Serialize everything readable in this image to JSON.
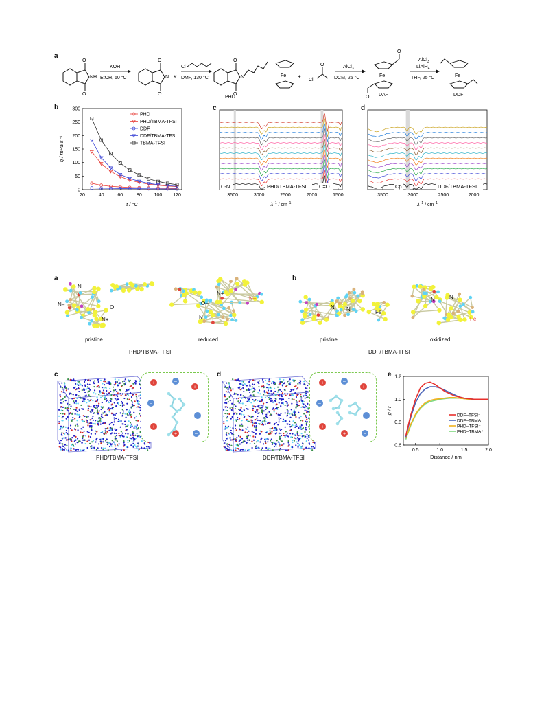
{
  "fig1": {
    "panel_a": {
      "label": "a",
      "reaction1": {
        "reagent_NH": "NH",
        "step1_top": "KOH",
        "step1_bottom": "EtOH, 60 °C",
        "cation": "K",
        "anion_N": "N",
        "reagent_Cl": "Cl",
        "step2_bottom": "DMF, 130 °C",
        "product_N": "N",
        "product": "PHD",
        "O": "O"
      },
      "reaction2": {
        "Fe": "Fe",
        "plus": "+",
        "Cl": "Cl",
        "step1_top": "AlCl",
        "step1_top_sub": "3",
        "step1_bottom": "DCM, 25 °C",
        "intermediate": "DAF",
        "step2_top1": "AlCl",
        "step2_top1_sub": "3",
        "step2_top2": "LiAlH",
        "step2_top2_sub": "4",
        "step2_bottom": "THF, 25 °C",
        "product": "DDF",
        "O": "O"
      }
    },
    "panel_b": {
      "label": "b"
    },
    "panel_c": {
      "label": "c",
      "annotations": [
        "C-N",
        "PHD/TBMA-TFSI",
        "C=O"
      ],
      "xlabel_main": "λ",
      "xlabel_sup": "–1",
      "xlabel_rest": " / cm",
      "xlabel_sup2": "–1",
      "xticks": [
        "3500",
        "3000",
        "2500",
        "2000",
        "1500"
      ]
    },
    "panel_d": {
      "label": "d",
      "annotations": [
        "Cp",
        "DDF/TBMA-TFSI"
      ],
      "xlabel_main": "λ",
      "xlabel_sup": "–1",
      "xlabel_rest": " / cm",
      "xlabel_sup2": "–1",
      "xticks": [
        "3500",
        "3000",
        "2500",
        "2000"
      ]
    }
  },
  "fig2": {
    "panel_a": {
      "label": "a",
      "atom_labels": [
        "N",
        "O",
        "N",
        "O",
        "N",
        "N",
        "N"
      ],
      "charges": [
        "–",
        "+",
        "–",
        "+",
        "–"
      ],
      "states": [
        "pristine",
        "reduced"
      ],
      "caption": "PHD/TBMA-TFSI"
    },
    "panel_b": {
      "label": "b",
      "atom_labels": [
        "N",
        "N",
        "Fe",
        "N",
        "N",
        "Fe"
      ],
      "states": [
        "pristine",
        "oxidized"
      ],
      "caption": "DDF/TBMA-TFSI"
    },
    "panel_c": {
      "label": "c",
      "caption": "PHD/TBMA-TFSI"
    },
    "panel_d": {
      "label": "d",
      "caption": "DDF/TBMA-TFSI"
    },
    "panel_e": {
      "label": "e"
    }
  },
  "chart_data": [
    {
      "type": "scatter",
      "title": "",
      "xlabel": "t / °C",
      "ylabel": "η / mPa s⁻¹",
      "xlim": [
        20,
        125
      ],
      "ylim": [
        0,
        300
      ],
      "xticks": [
        20,
        40,
        60,
        80,
        100,
        120
      ],
      "yticks": [
        0,
        50,
        100,
        150,
        200,
        250,
        300
      ],
      "x": [
        30,
        40,
        50,
        60,
        70,
        80,
        90,
        100,
        110,
        120
      ],
      "legend_position": "top-right",
      "series": [
        {
          "name": "PHD",
          "color": "#e8413c",
          "marker": "circle",
          "values": [
            23,
            16,
            12,
            10,
            8,
            7,
            6,
            5.5,
            5,
            4.5
          ]
        },
        {
          "name": "PHD/TBMA-TFSI",
          "color": "#e8413c",
          "marker": "triangle-down",
          "values": [
            140,
            96,
            67,
            48,
            35,
            26,
            20,
            16,
            13,
            11
          ]
        },
        {
          "name": "DDF",
          "color": "#3d46d6",
          "marker": "circle",
          "values": [
            6,
            5,
            4.5,
            4,
            3.6,
            3.3,
            3,
            2.8,
            2.6,
            2.5
          ]
        },
        {
          "name": "DDF/TBMA-TFSI",
          "color": "#3d46d6",
          "marker": "triangle-down",
          "values": [
            183,
            118,
            80,
            56,
            41,
            31,
            23,
            18,
            15,
            12
          ]
        },
        {
          "name": "TBMA-TFSI",
          "color": "#333333",
          "marker": "square",
          "values": [
            263,
            183,
            133,
            98,
            72,
            54,
            40,
            30,
            23,
            18
          ]
        }
      ]
    },
    {
      "type": "line",
      "title": "",
      "xlabel": "Distance / nm",
      "ylabel": "g / r",
      "xlim": [
        0.25,
        2.0
      ],
      "ylim": [
        0.6,
        1.2
      ],
      "xticks": [
        0.5,
        1.0,
        1.5,
        2.0
      ],
      "yticks": [
        0.6,
        0.8,
        1.0,
        1.2
      ],
      "legend_position": "lower-right",
      "x": [
        0.3,
        0.4,
        0.5,
        0.6,
        0.7,
        0.8,
        0.9,
        1.0,
        1.1,
        1.2,
        1.3,
        1.4,
        1.5,
        1.6,
        1.7,
        1.8,
        1.9,
        2.0
      ],
      "series": [
        {
          "name": "DDF–TFSI⁻",
          "color": "#e8302c",
          "values": [
            0.68,
            0.86,
            1.0,
            1.1,
            1.14,
            1.15,
            1.13,
            1.1,
            1.07,
            1.05,
            1.03,
            1.02,
            1.01,
            1.005,
            1.0,
            1.0,
            1.0,
            1.0
          ]
        },
        {
          "name": "DDF–TBMA⁺",
          "color": "#4a64b8",
          "values": [
            0.67,
            0.84,
            0.97,
            1.05,
            1.09,
            1.11,
            1.11,
            1.1,
            1.08,
            1.06,
            1.04,
            1.02,
            1.01,
            1.005,
            1.0,
            1.0,
            1.0,
            1.0
          ]
        },
        {
          "name": "PHD–TFSI⁻",
          "color": "#f1b21e",
          "values": [
            0.66,
            0.78,
            0.87,
            0.93,
            0.97,
            0.99,
            1.0,
            1.005,
            1.01,
            1.015,
            1.015,
            1.01,
            1.005,
            1.0,
            1.0,
            1.0,
            1.0,
            1.0
          ]
        },
        {
          "name": "PHD–TBMA⁺",
          "color": "#7ed87e",
          "values": [
            0.65,
            0.77,
            0.86,
            0.92,
            0.96,
            0.98,
            0.99,
            1.0,
            1.005,
            1.01,
            1.01,
            1.01,
            1.005,
            1.0,
            1.0,
            1.0,
            1.0,
            1.0
          ]
        }
      ]
    }
  ]
}
